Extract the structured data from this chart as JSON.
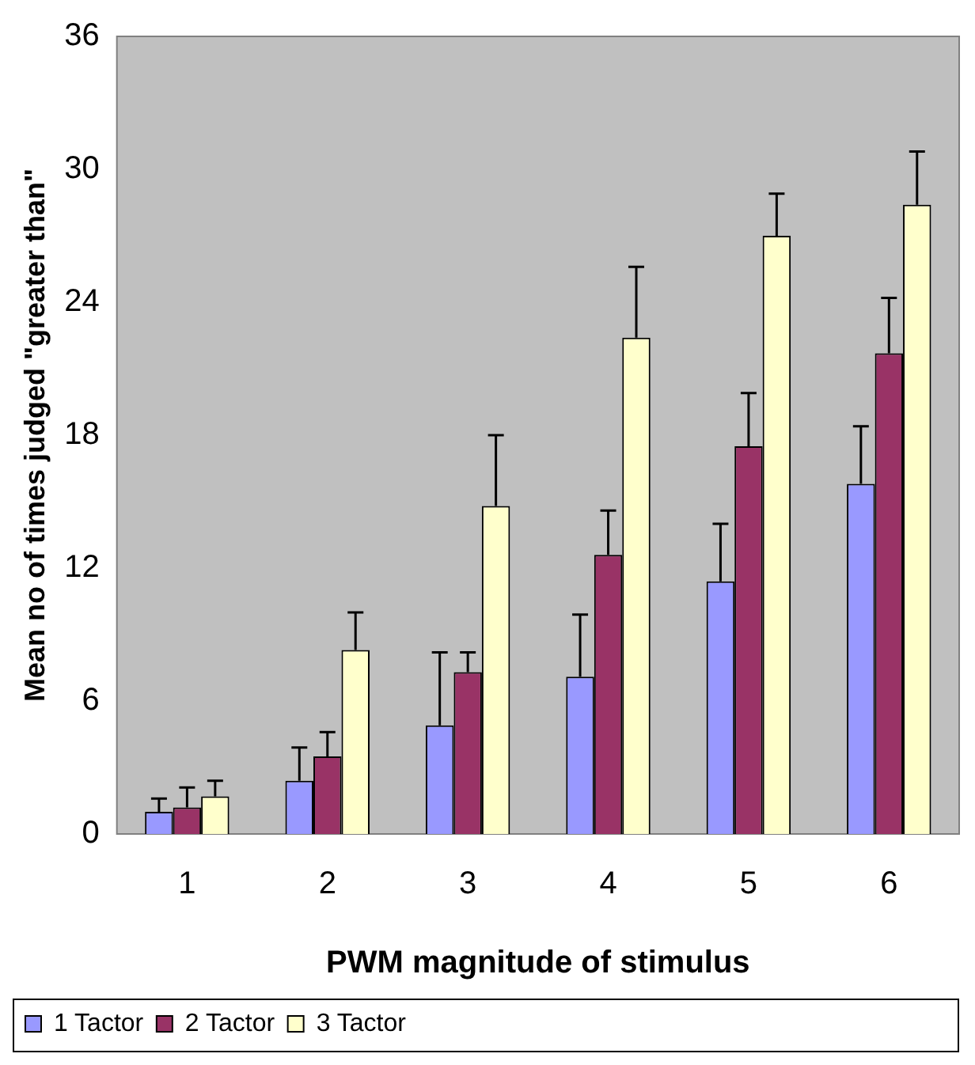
{
  "chart_data": {
    "type": "bar",
    "xlabel": "PWM magnitude of stimulus",
    "ylabel": "Mean no of times judged \"greater than\"",
    "categories": [
      "1",
      "2",
      "3",
      "4",
      "5",
      "6"
    ],
    "ylim": [
      0,
      36
    ],
    "yticks": [
      0,
      6,
      12,
      18,
      24,
      30,
      36
    ],
    "legend": "bottom",
    "series": [
      {
        "name": "1 Tactor",
        "color": "#9999ff",
        "values": [
          1.0,
          2.4,
          4.9,
          7.1,
          11.4,
          15.8
        ],
        "errors": [
          0.6,
          1.5,
          3.3,
          2.8,
          2.6,
          2.6
        ]
      },
      {
        "name": "2 Tactor",
        "color": "#993366",
        "values": [
          1.2,
          3.5,
          7.3,
          12.6,
          17.5,
          21.7
        ],
        "errors": [
          0.9,
          1.1,
          0.9,
          2.0,
          2.4,
          2.5
        ]
      },
      {
        "name": "3 Tactor",
        "color": "#ffffcc",
        "values": [
          1.7,
          8.3,
          14.8,
          22.4,
          27.0,
          28.4
        ],
        "errors": [
          0.7,
          1.7,
          3.2,
          3.2,
          1.9,
          2.4
        ]
      }
    ]
  }
}
